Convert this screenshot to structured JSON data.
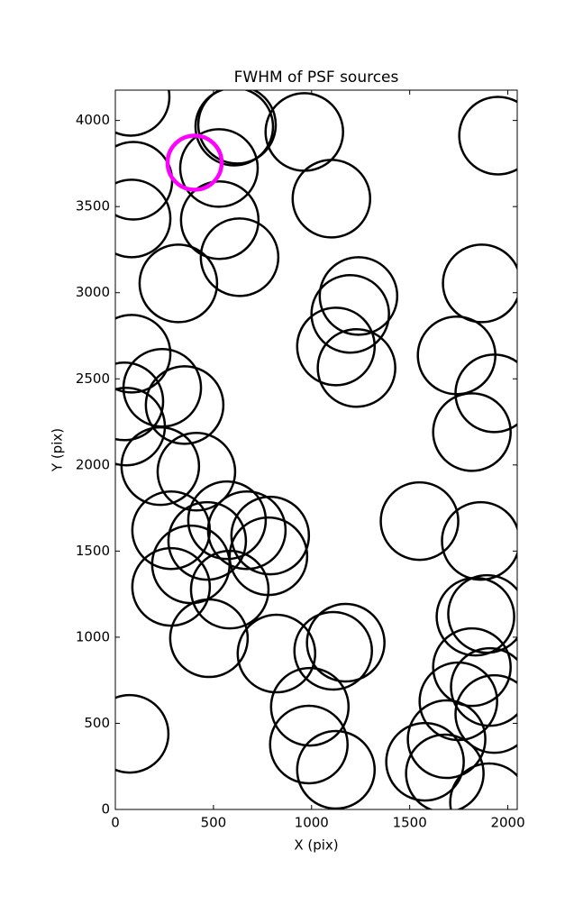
{
  "chart_data": {
    "type": "scatter",
    "title": "FWHM of PSF sources",
    "x_label": "X (pix)",
    "y_label": "Y (pix)",
    "xlim": [
      0,
      2048
    ],
    "ylim": [
      0,
      4176
    ],
    "xticks": [
      0,
      500,
      1000,
      1500,
      2000
    ],
    "yticks": [
      0,
      500,
      1000,
      1500,
      2000,
      2500,
      3000,
      3500,
      4000
    ],
    "series": [
      {
        "color": "#000000",
        "x": [
          78,
          606,
          620,
          963,
          1950,
          92,
          528,
          1101,
          83,
          532,
          633,
          321,
          1239,
          1197,
          1867,
          83,
          1124,
          1229,
          1739,
          1931,
          239,
          46,
          353,
          55,
          1817,
          229,
          413,
          1550,
          1862,
          569,
          284,
          670,
          789,
          468,
          385,
          780,
          583,
          284,
          1894,
          1835,
          1174,
          1110,
          821,
          477,
          1817,
          1908,
          1931,
          1748,
          991,
          73,
          1688,
          986,
          1578,
          1679,
          1124,
          1904
        ],
        "y": [
          4137,
          3964,
          3975,
          3933,
          3912,
          3650,
          3724,
          3546,
          3431,
          3421,
          3206,
          3054,
          2981,
          2877,
          3054,
          2646,
          2688,
          2563,
          2636,
          2416,
          2448,
          2369,
          2348,
          2223,
          2191,
          1993,
          1961,
          1674,
          1559,
          1679,
          1621,
          1621,
          1590,
          1559,
          1423,
          1470,
          1276,
          1292,
          1135,
          1119,
          968,
          921,
          905,
          994,
          826,
          711,
          554,
          628,
          596,
          439,
          408,
          377,
          277,
          209,
          230,
          42
        ]
      },
      {
        "color": "#ff00ff",
        "x": [
          404
        ],
        "y": [
          3755
        ]
      }
    ]
  }
}
